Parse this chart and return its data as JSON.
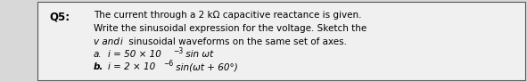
{
  "background_color": "#d8d8d8",
  "box_color": "#f0f0f0",
  "border_color": "#555555",
  "label": "Q5:",
  "line1": "The current through a 2 kΩ capacitive reactance is given.",
  "line2": "Write the sinusoidal expression for the voltage. Sketch the",
  "line3": "v and i sinusoidal waveforms on the same set of axes.",
  "sub_a_label": "a.",
  "sub_a_main": "i = 50 × 10",
  "sub_a_exp": "−3",
  "sub_a_rest": " sin ωt",
  "sub_b_label": "b.",
  "sub_b_main": "i = 2 × 10",
  "sub_b_exp": "−6",
  "sub_b_rest": " sin(ωt + 60°)",
  "font_size_main": 7.5,
  "font_size_label": 8.5,
  "font_size_sub": 5.5
}
